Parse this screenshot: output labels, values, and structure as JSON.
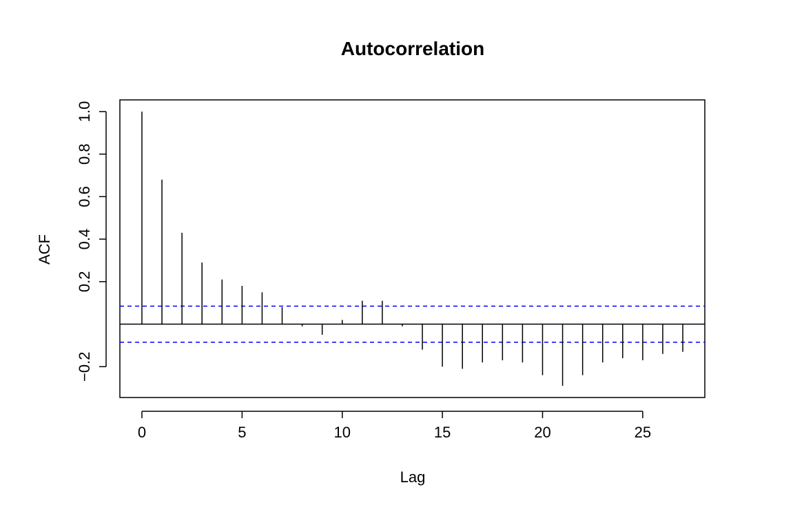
{
  "chart_data": {
    "type": "bar",
    "subtype": "acf-lollipop",
    "title": "Autocorrelation",
    "xlabel": "Lag",
    "ylabel": "ACF",
    "x": [
      0,
      1,
      2,
      3,
      4,
      5,
      6,
      7,
      8,
      9,
      10,
      11,
      12,
      13,
      14,
      15,
      16,
      17,
      18,
      19,
      20,
      21,
      22,
      23,
      24,
      25,
      26,
      27
    ],
    "values": [
      1.0,
      0.68,
      0.43,
      0.29,
      0.21,
      0.18,
      0.15,
      0.08,
      -0.01,
      -0.05,
      0.02,
      0.11,
      0.11,
      -0.01,
      -0.12,
      -0.2,
      -0.21,
      -0.18,
      -0.17,
      -0.18,
      -0.24,
      -0.29,
      -0.24,
      -0.18,
      -0.16,
      -0.17,
      -0.14,
      -0.13
    ],
    "confidence_band": 0.085,
    "xlim": [
      -1.1,
      28.1
    ],
    "ylim": [
      -0.345,
      1.055
    ],
    "x_ticks": [
      0,
      5,
      10,
      15,
      20,
      25
    ],
    "x_tick_labels": [
      "0",
      "5",
      "10",
      "15",
      "20",
      "25"
    ],
    "y_ticks": [
      -0.2,
      0.2,
      0.4,
      0.6,
      0.8,
      1.0
    ],
    "y_tick_labels": [
      "−0.2",
      "0.2",
      "0.4",
      "0.6",
      "0.8",
      "1.0"
    ],
    "grid": false,
    "colors": {
      "stem": "#000000",
      "zero_line": "#000000",
      "confidence_band": "#0000ff",
      "frame": "#000000"
    }
  }
}
